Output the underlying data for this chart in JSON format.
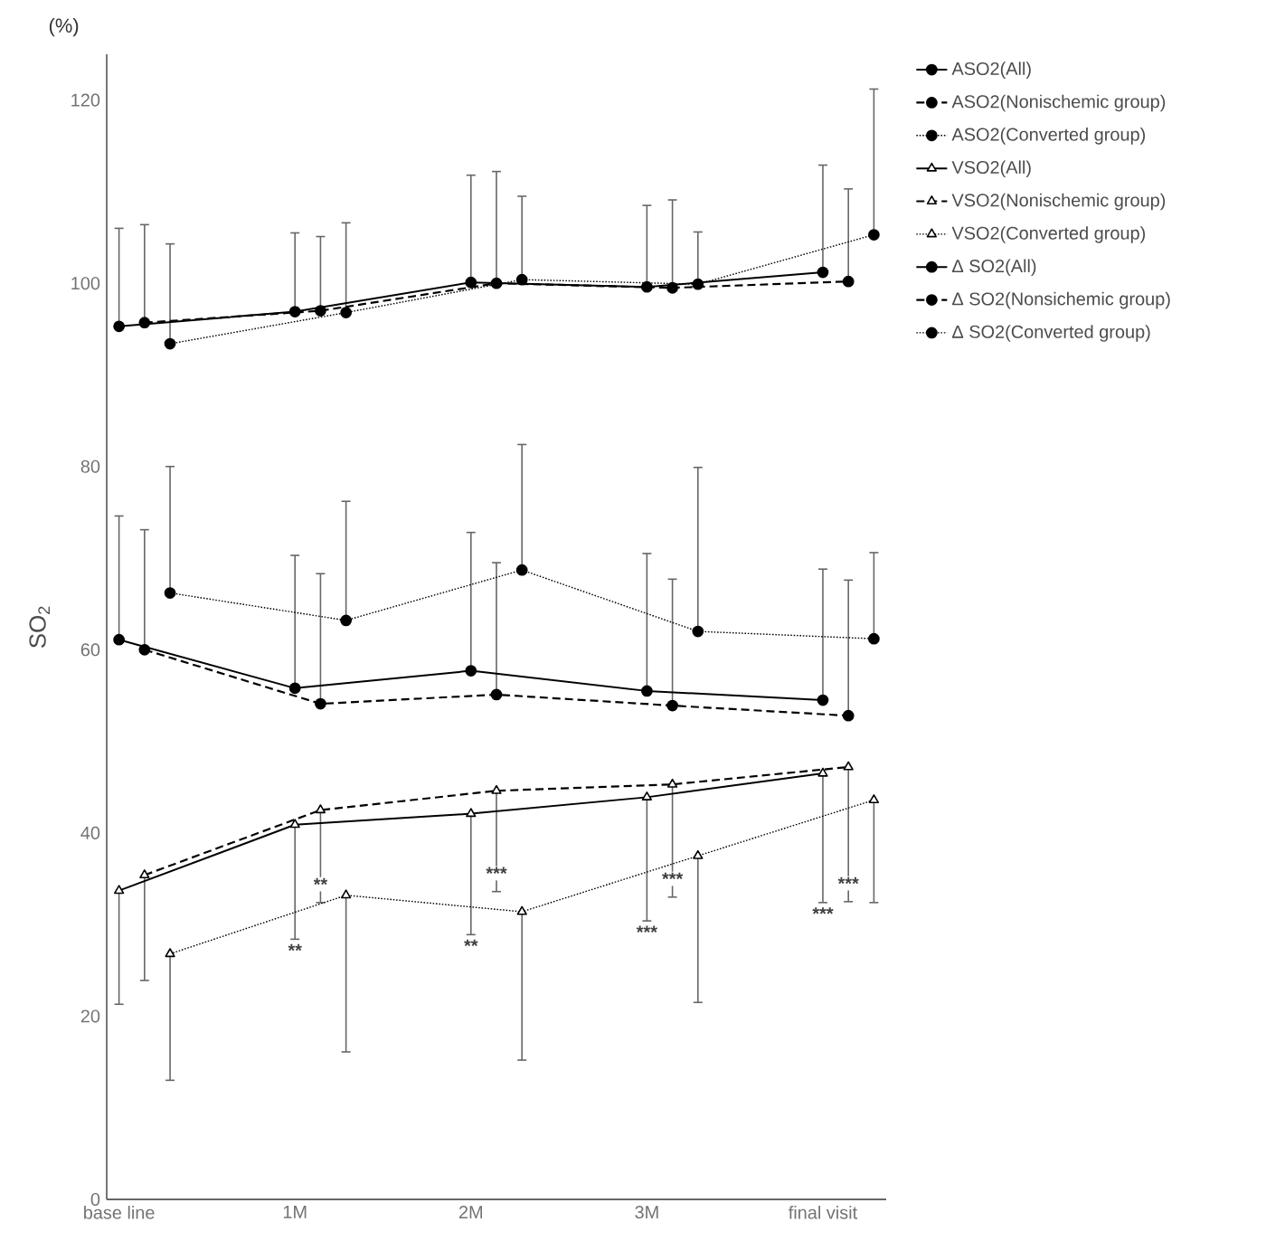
{
  "chart_data": {
    "type": "line",
    "ylabel": "SO$_{2}$",
    "xlim": [
      -0.07,
      4.36
    ],
    "xticks": [
      {
        "value": 0,
        "label": "base line"
      },
      {
        "value": 1,
        "label": "1M"
      },
      {
        "value": 2,
        "label": "2M"
      },
      {
        "value": 3,
        "label": "3M"
      },
      {
        "value": 4,
        "label": "final visit"
      }
    ],
    "ylim": [
      0,
      125
    ],
    "yticks": [
      0,
      20,
      40,
      60,
      80,
      100,
      120
    ],
    "legend": "right",
    "series": [
      {
        "name": "ASO2(All)",
        "color": "#000000",
        "marker": "circle",
        "line_style": "solid",
        "x": [
          0,
          1,
          2,
          3,
          4
        ],
        "values": [
          95.3,
          96.9,
          100.1,
          99.6,
          101.2
        ],
        "errors": [
          [
            95.3,
            106.0
          ],
          [
            96.9,
            105.5
          ],
          [
            100.1,
            111.8
          ],
          [
            99.6,
            108.5
          ],
          [
            101.2,
            112.9
          ]
        ]
      },
      {
        "name": "ASO2(Nonischemic group)",
        "color": "#000000",
        "marker": "circle",
        "line_style": "dashed",
        "x": [
          0.145,
          1.145,
          2.145,
          3.145,
          4.145
        ],
        "values": [
          95.7,
          97.0,
          100.0,
          99.5,
          100.2
        ],
        "errors": [
          [
            95.7,
            106.4
          ],
          [
            97.0,
            105.1
          ],
          [
            100.0,
            112.2
          ],
          [
            99.5,
            109.1
          ],
          [
            100.2,
            110.3
          ]
        ]
      },
      {
        "name": "ASO2(Converted group)",
        "color": "#000000",
        "marker": "circle",
        "line_style": "dotted",
        "x": [
          0.29,
          1.29,
          2.29,
          3.29,
          4.29
        ],
        "values": [
          93.4,
          96.8,
          100.4,
          99.9,
          105.3
        ],
        "errors": [
          [
            93.4,
            104.3
          ],
          [
            96.8,
            106.6
          ],
          [
            100.4,
            109.5
          ],
          [
            99.9,
            105.6
          ],
          [
            105.3,
            121.2
          ]
        ]
      },
      {
        "name": "VSO2(All)",
        "color": "#000000",
        "marker": "triangle",
        "line_style": "solid",
        "x": [
          0,
          1,
          2,
          3,
          4
        ],
        "values": [
          33.7,
          40.9,
          42.1,
          43.9,
          46.5
        ],
        "errors": [
          [
            21.3,
            33.7
          ],
          [
            28.4,
            40.9
          ],
          [
            28.9,
            42.1
          ],
          [
            30.4,
            43.9
          ],
          [
            32.4,
            46.5
          ]
        ]
      },
      {
        "name": "VSO2(Nonischemic group)",
        "color": "#000000",
        "marker": "triangle",
        "line_style": "dashed",
        "x": [
          0.145,
          1.145,
          2.145,
          3.145,
          4.145
        ],
        "values": [
          35.4,
          42.5,
          44.6,
          45.3,
          47.2
        ],
        "errors": [
          [
            23.9,
            35.4
          ],
          [
            32.4,
            42.5
          ],
          [
            33.6,
            44.6
          ],
          [
            33.0,
            45.3
          ],
          [
            32.5,
            47.2
          ]
        ]
      },
      {
        "name": "VSO2(Converted group)",
        "color": "#000000",
        "marker": "triangle",
        "line_style": "dotted",
        "x": [
          0.29,
          1.29,
          2.29,
          3.29,
          4.29
        ],
        "values": [
          26.8,
          33.2,
          31.4,
          37.5,
          43.6
        ],
        "errors": [
          [
            13.0,
            26.8
          ],
          [
            16.1,
            33.2
          ],
          [
            15.2,
            31.4
          ],
          [
            21.5,
            37.5
          ],
          [
            32.4,
            43.6
          ]
        ]
      },
      {
        "name": "Δ SO2(All)",
        "color": "#000000",
        "marker": "circle",
        "line_style": "solid",
        "x": [
          0,
          1,
          2,
          3,
          4
        ],
        "values": [
          61.1,
          55.8,
          57.7,
          55.5,
          54.5
        ],
        "errors": [
          [
            61.1,
            74.6
          ],
          [
            55.8,
            70.3
          ],
          [
            57.7,
            72.8
          ],
          [
            55.5,
            70.5
          ],
          [
            54.5,
            68.8
          ]
        ]
      },
      {
        "name": "Δ SO2(Nonsichemic group)",
        "color": "#000000",
        "marker": "circle",
        "line_style": "dashed",
        "x": [
          0.145,
          1.145,
          2.145,
          3.145,
          4.145
        ],
        "values": [
          60.0,
          54.1,
          55.1,
          53.9,
          52.8
        ],
        "errors": [
          [
            60.0,
            73.1
          ],
          [
            54.1,
            68.3
          ],
          [
            55.1,
            69.5
          ],
          [
            53.9,
            67.7
          ],
          [
            52.8,
            67.6
          ]
        ]
      },
      {
        "name": "Δ SO2(Converted group)",
        "color": "#000000",
        "marker": "circle",
        "line_style": "dotted",
        "x": [
          0.29,
          1.29,
          2.29,
          3.29,
          4.29
        ],
        "values": [
          66.2,
          63.2,
          68.7,
          62.0,
          61.2
        ],
        "errors": [
          [
            66.2,
            80.0
          ],
          [
            63.2,
            76.2
          ],
          [
            68.7,
            82.4
          ],
          [
            62.0,
            79.9
          ],
          [
            61.2,
            70.6
          ]
        ]
      }
    ],
    "annotations": [
      "(%)",
      {
        "text": "**",
        "x": 1,
        "y": 28.4
      },
      {
        "text": "**",
        "x": 1.145,
        "y": 32.4
      },
      {
        "text": "**",
        "x": 2,
        "y": 28.9
      },
      {
        "text": "***",
        "x": 2.145,
        "y": 33.6
      },
      {
        "text": "***",
        "x": 3,
        "y": 30.4
      },
      {
        "text": "***",
        "x": 3.145,
        "y": 33.0
      },
      {
        "text": "***",
        "x": 4,
        "y": 32.4
      },
      {
        "text": "***",
        "x": 4.145,
        "y": 32.5
      }
    ]
  }
}
